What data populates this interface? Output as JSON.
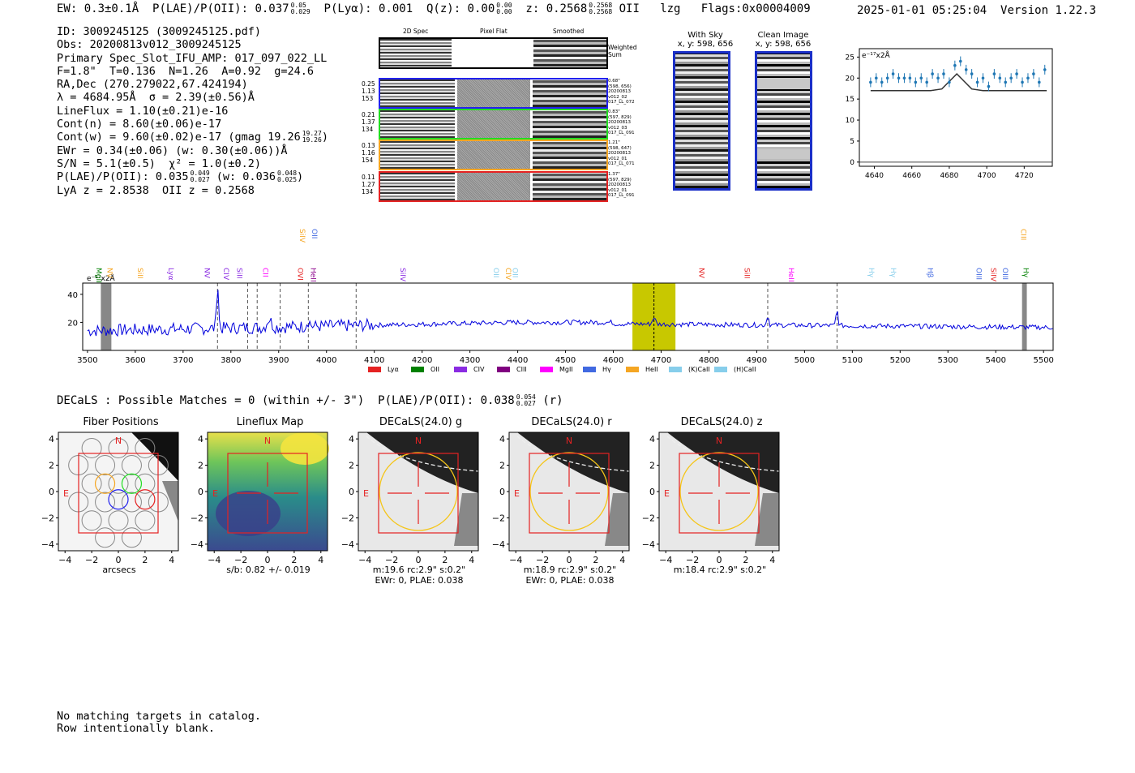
{
  "header": {
    "ew": "EW: 0.3±0.1Å",
    "plae_label": "P(LAE)/P(OII): 0.037",
    "plae_hi": "0.05",
    "plae_lo": "0.029",
    "plya": "P(Lyα): 0.001",
    "qz_label": "Q(z): 0.00",
    "qz_hi": "0.00",
    "qz_lo": "0.00",
    "z_label": "z: 0.2568",
    "z_hi": "0.2568",
    "z_lo": "0.2568",
    "z_line": "OII",
    "lzg": "lzg",
    "flags": "Flags:0x00004009",
    "timestamp": "2025-01-01 05:25:04",
    "version": "Version 1.22.3"
  },
  "info": {
    "lines": [
      "ID: 3009245125 (3009245125.pdf)",
      "Obs: 20200813v012_3009245125",
      "Primary Spec_Slot_IFU_AMP: 017_097_022_LL",
      "F=1.8\"  T=0.136  N=1.26  A=0.92  g=24.6",
      "RA,Dec (270.279022,67.424194)",
      "λ = 4684.95Å  σ = 2.39(±0.56)Å",
      "LineFlux = 1.10(±0.21)e-16",
      "Cont(n) = 8.60(±0.06)e-17"
    ],
    "contw": "Cont(w) = 9.60(±0.02)e-17 (gmag 19.26",
    "contw_hi": "19.27",
    "contw_lo": "19.26",
    "ewr": "EWr = 0.34(±0.06) (w: 0.30(±0.06))Å",
    "sn": "S/N = 5.1(±0.5)  χ² = 1.0(±0.2)",
    "plae2": "P(LAE)/P(OII): 0.035",
    "plae2_hi": "0.049",
    "plae2_lo": "0.027",
    "plae2_w": "(w: 0.036",
    "plae2_w_hi": "0.048",
    "plae2_w_lo": "0.025",
    "lya": "LyA z = 2.8538  OII z = 0.2568"
  },
  "cutouts": {
    "col_labels": [
      "2D Spec",
      "Pixel Flat",
      "Smoothed"
    ],
    "weighted_sum": "Weighted Sum",
    "rows": [
      {
        "meta": [
          "0.25",
          "1.13",
          "153"
        ],
        "note": [
          "0.68\"",
          "(598, 656)",
          "20200813",
          "v012_02",
          "017_LL_072"
        ],
        "color": "#2222ee"
      },
      {
        "meta": [
          "0.21",
          "1.37",
          "134"
        ],
        "note": [
          "0.83\"",
          "(597, 829)",
          "20200813",
          "v012_03",
          "017_LL_091"
        ],
        "color": "#22dd22"
      },
      {
        "meta": [
          "0.13",
          "1.16",
          "154"
        ],
        "note": [
          "1.21\"",
          "(598, 647)",
          "20200813",
          "v012_01",
          "017_LL_071"
        ],
        "color": "#f5a623"
      },
      {
        "meta": [
          "0.11",
          "1.27",
          "134"
        ],
        "note": [
          "1.37\"",
          "(597, 829)",
          "20200813",
          "v012_01",
          "017_LL_091"
        ],
        "color": "#e52222"
      }
    ]
  },
  "sky": {
    "with_sky": "With Sky",
    "with_sky_xy": "x, y: 598, 656",
    "clean": "Clean Image",
    "clean_xy": "x, y: 598, 656"
  },
  "zoom_chart": {
    "type": "scatter",
    "unit_label": "e⁻¹⁷x2Å",
    "x": [
      4638,
      4641,
      4644,
      4647,
      4650,
      4653,
      4656,
      4659,
      4662,
      4665,
      4668,
      4671,
      4674,
      4677,
      4680,
      4683,
      4686,
      4689,
      4692,
      4695,
      4698,
      4701,
      4704,
      4707,
      4710,
      4713,
      4716,
      4719,
      4722,
      4725,
      4728,
      4731
    ],
    "y": [
      19,
      20,
      19,
      20,
      21,
      20,
      20,
      20,
      19,
      20,
      19,
      21,
      20,
      21,
      19,
      23,
      24,
      22,
      21,
      19,
      20,
      18,
      21,
      20,
      19,
      20,
      21,
      19,
      20,
      21,
      19,
      22
    ],
    "fit_x": [
      4638,
      4670,
      4676,
      4680,
      4684,
      4688,
      4692,
      4698,
      4732
    ],
    "fit_y": [
      17,
      17,
      17.4,
      19.2,
      21,
      19.2,
      17.4,
      17,
      17
    ],
    "xticks": [
      4640,
      4660,
      4680,
      4700,
      4720
    ],
    "yticks": [
      0,
      5,
      10,
      15,
      20,
      25
    ],
    "xlim": [
      4632,
      4735
    ],
    "ylim": [
      -1,
      27
    ]
  },
  "spectrum": {
    "type": "line",
    "unit_label": "e⁻¹⁷x2Å",
    "xticks": [
      3500,
      3600,
      3700,
      3800,
      3900,
      4000,
      4100,
      4200,
      4300,
      4400,
      4500,
      4600,
      4700,
      4800,
      4900,
      5000,
      5100,
      5200,
      5300,
      5400,
      5500
    ],
    "yticks": [
      20,
      40
    ],
    "xlim": [
      3490,
      5520
    ],
    "ylim": [
      0,
      48
    ],
    "highlight": [
      4640,
      4730
    ],
    "peak_line": 4685,
    "dashed_lines": [
      3772,
      3835,
      3855,
      3903,
      3962,
      4062,
      4923,
      5068
    ],
    "line_labels": [
      {
        "label": "MgII",
        "x": 3514,
        "color": "#008000",
        "row": 0
      },
      {
        "label": "NV",
        "x": 3537,
        "color": "#f5a623",
        "row": 0
      },
      {
        "label": "SiII",
        "x": 3600,
        "color": "#f5a623",
        "row": 0
      },
      {
        "label": "Lyα",
        "x": 3665,
        "color": "#8a2be2",
        "row": 0
      },
      {
        "label": "NV",
        "x": 3740,
        "color": "#8a2be2",
        "row": 0
      },
      {
        "label": "CIV",
        "x": 3780,
        "color": "#8a2be2",
        "row": 0
      },
      {
        "label": "SiII",
        "x": 3808,
        "color": "#8a2be2",
        "row": 0
      },
      {
        "label": "CII",
        "x": 3862,
        "color": "#ff00ff",
        "row": 0
      },
      {
        "label": "OVI",
        "x": 3935,
        "color": "#e52222",
        "row": 0
      },
      {
        "label": "SiIV",
        "x": 3939,
        "color": "#f5a623",
        "row": 1
      },
      {
        "label": "OII",
        "x": 3965,
        "color": "#4169e1",
        "row": 1
      },
      {
        "label": "HeII",
        "x": 3962,
        "color": "#8b008b",
        "row": 0
      },
      {
        "label": "SiIV",
        "x": 4150,
        "color": "#8a2be2",
        "row": 0
      },
      {
        "label": "OII",
        "x": 4345,
        "color": "#87ceeb",
        "row": 0
      },
      {
        "label": "CIV",
        "x": 4370,
        "color": "#f5a623",
        "row": 0
      },
      {
        "label": "OII",
        "x": 4385,
        "color": "#87ceeb",
        "row": 0
      },
      {
        "label": "NV",
        "x": 4775,
        "color": "#e52222",
        "row": 0
      },
      {
        "label": "SiII",
        "x": 4870,
        "color": "#e52222",
        "row": 0
      },
      {
        "label": "HeII",
        "x": 4962,
        "color": "#ff00ff",
        "row": 0
      },
      {
        "label": "Hγ",
        "x": 5130,
        "color": "#87ceeb",
        "row": 0
      },
      {
        "label": "Hγ",
        "x": 5176,
        "color": "#87ceeb",
        "row": 0
      },
      {
        "label": "Hβ",
        "x": 5253,
        "color": "#4169e1",
        "row": 0
      },
      {
        "label": "OIII",
        "x": 5355,
        "color": "#4169e1",
        "row": 0
      },
      {
        "label": "SiIV",
        "x": 5385,
        "color": "#e52222",
        "row": 0
      },
      {
        "label": "OIII",
        "x": 5410,
        "color": "#4169e1",
        "row": 0
      },
      {
        "label": "CIII",
        "x": 5448,
        "color": "#f5a623",
        "row": 1
      },
      {
        "label": "Hγ",
        "x": 5453,
        "color": "#008000",
        "row": 0
      }
    ],
    "legend": [
      {
        "label": "Lyα",
        "color": "#e52222"
      },
      {
        "label": "OII",
        "color": "#008000"
      },
      {
        "label": "CIV",
        "color": "#8a2be2"
      },
      {
        "label": "CIII",
        "color": "#800080"
      },
      {
        "label": "MgII",
        "color": "#ff00ff"
      },
      {
        "label": "Hγ",
        "color": "#4169e1"
      },
      {
        "label": "HeII",
        "color": "#f5a623"
      },
      {
        "label": "(K)CaII",
        "color": "#87ceeb"
      },
      {
        "label": "(H)CaII",
        "color": "#87ceeb"
      }
    ]
  },
  "decals": {
    "summary": "DECaLS : Possible Matches = 0 (within +/- 3\")  P(LAE)/P(OII): 0.038",
    "summary_hi": "0.054",
    "summary_lo": "0.027",
    "summary_band": "(r)",
    "tick_labels": [
      "4",
      "2",
      "0",
      "−2",
      "−4"
    ],
    "xtick_labels": [
      "−4",
      "−2",
      "0",
      "2",
      "4"
    ],
    "north": "N",
    "east": "E",
    "panels": [
      {
        "title": "Fiber Positions",
        "caption": [
          "arcsecs"
        ]
      },
      {
        "title": "Lineflux Map",
        "caption": [
          "s/b: 0.82 +/- 0.019"
        ]
      },
      {
        "title": "DECaLS(24.0) g",
        "caption": [
          "m:19.6 rc:2.9\"  s:0.2\"",
          "EWr: 0, PLAE: 0.038"
        ]
      },
      {
        "title": "DECaLS(24.0) r",
        "caption": [
          "m:18.9 rc:2.9\"  s:0.2\"",
          "EWr: 0, PLAE: 0.038"
        ]
      },
      {
        "title": "DECaLS(24.0) z",
        "caption": [
          "m:18.4 rc:2.9\"  s:0.2\""
        ]
      }
    ]
  },
  "footer": {
    "line1": "No matching targets in catalog.",
    "line2": "Row intentionally blank."
  }
}
